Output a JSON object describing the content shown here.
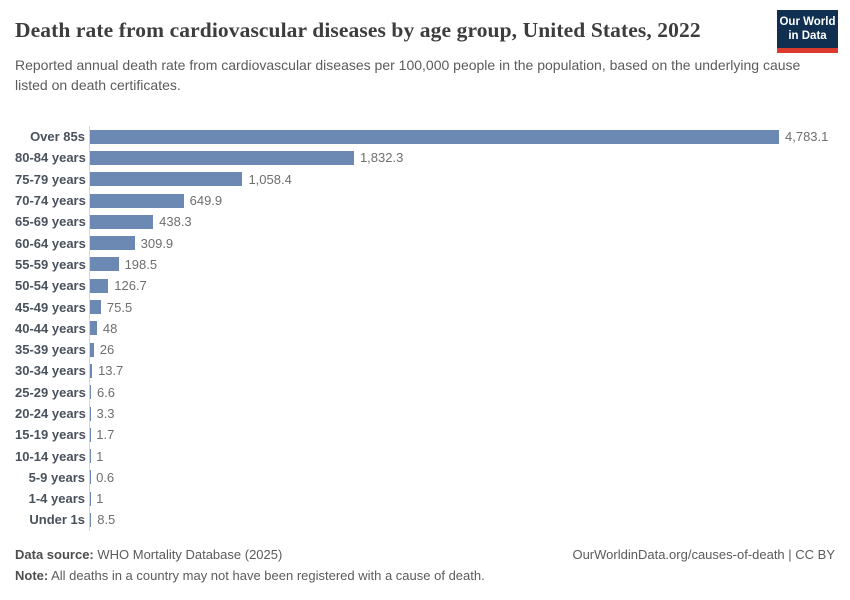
{
  "header": {
    "title": "Death rate from cardiovascular diseases by age group, United States, 2022",
    "subtitle": "Reported annual death rate from cardiovascular diseases per 100,000 people in the population, based on the underlying cause listed on death certificates."
  },
  "logo": {
    "line1": "Our World",
    "line2": "in Data",
    "background_color": "#112f51",
    "accent_color": "#dc3a2c"
  },
  "chart_data": {
    "type": "bar",
    "orientation": "horizontal",
    "title": "Death rate from cardiovascular diseases by age group, United States, 2022",
    "xlabel": "",
    "ylabel": "",
    "xlim": [
      0,
      4783.1
    ],
    "grid": false,
    "legend": false,
    "bar_color": "#6c89b4",
    "categories": [
      "Over 85s",
      "80-84 years",
      "75-79 years",
      "70-74 years",
      "65-69 years",
      "60-64 years",
      "55-59 years",
      "50-54 years",
      "45-49 years",
      "40-44 years",
      "35-39 years",
      "30-34 years",
      "25-29 years",
      "20-24 years",
      "15-19 years",
      "10-14 years",
      "5-9 years",
      "1-4 years",
      "Under 1s"
    ],
    "values": [
      4783.1,
      1832.3,
      1058.4,
      649.9,
      438.3,
      309.9,
      198.5,
      126.7,
      75.5,
      48,
      26,
      13.7,
      6.6,
      3.3,
      1.7,
      1,
      0.6,
      1,
      8.5
    ],
    "value_labels": [
      "4,783.1",
      "1,832.3",
      "1,058.4",
      "649.9",
      "438.3",
      "309.9",
      "198.5",
      "126.7",
      "75.5",
      "48",
      "26",
      "13.7",
      "6.6",
      "3.3",
      "1.7",
      "1",
      "0.6",
      "1",
      "8.5"
    ]
  },
  "footer": {
    "source_label": "Data source:",
    "source_text": " WHO Mortality Database (2025)",
    "note_label": "Note:",
    "note_text": " All deaths in a country may not have been registered with a cause of death.",
    "attribution": "OurWorldinData.org/causes-of-death | CC BY"
  }
}
